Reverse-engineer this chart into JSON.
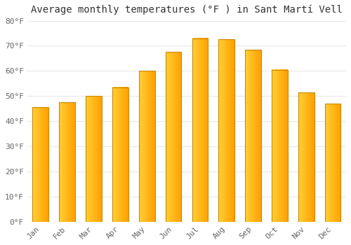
{
  "title": "Average monthly temperatures (°F ) in Sant Martí Vell",
  "months": [
    "Jan",
    "Feb",
    "Mar",
    "Apr",
    "May",
    "Jun",
    "Jul",
    "Aug",
    "Sep",
    "Oct",
    "Nov",
    "Dec"
  ],
  "values": [
    45.5,
    47.5,
    50.0,
    53.5,
    60.0,
    67.5,
    73.0,
    72.5,
    68.5,
    60.5,
    51.5,
    47.0
  ],
  "bar_color_left": "#FFB800",
  "bar_color_right": "#FF9900",
  "bar_color_light": "#FFD840",
  "bar_edge_color": "#CC8800",
  "background_color": "#FFFFFF",
  "plot_bg_color": "#FFFFFF",
  "grid_color": "#E8E8E8",
  "text_color": "#666666",
  "title_color": "#333333",
  "ylim": [
    0,
    80
  ],
  "yticks": [
    0,
    10,
    20,
    30,
    40,
    50,
    60,
    70,
    80
  ],
  "ytick_labels": [
    "0°F",
    "10°F",
    "20°F",
    "30°F",
    "40°F",
    "50°F",
    "60°F",
    "70°F",
    "80°F"
  ],
  "title_fontsize": 10,
  "tick_fontsize": 8,
  "font_family": "monospace",
  "bar_width": 0.6
}
